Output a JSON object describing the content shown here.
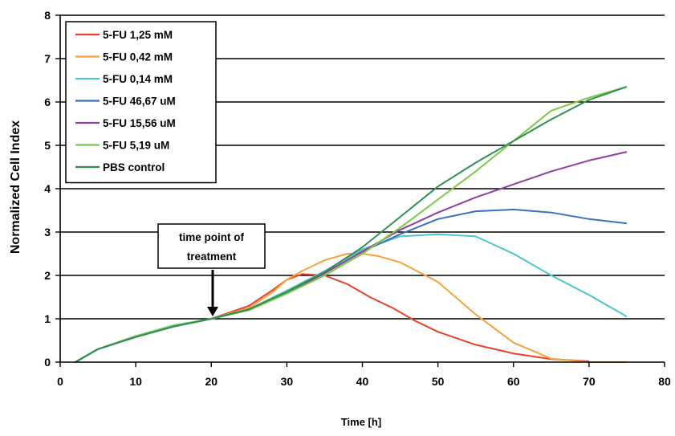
{
  "chart_data": {
    "type": "line",
    "title": "",
    "xlabel": "Time [h]",
    "ylabel": "Normalized Cell Index",
    "xlim": [
      0,
      80
    ],
    "ylim": [
      0,
      8
    ],
    "x_ticks": [
      "0",
      "10",
      "20",
      "30",
      "40",
      "50",
      "60",
      "70",
      "80"
    ],
    "y_ticks": [
      "0",
      "1",
      "2",
      "3",
      "4",
      "5",
      "6",
      "7",
      "8"
    ],
    "grid": "horizontal",
    "legend_position": "top-left",
    "annotation": {
      "lines": [
        "time point of",
        "treatment"
      ],
      "x": 20.5,
      "y": 1.0
    },
    "series": [
      {
        "name": "5-FU 1,25 mM",
        "color": "#e8412c",
        "points": [
          [
            2,
            0
          ],
          [
            5,
            0.3
          ],
          [
            10,
            0.6
          ],
          [
            15,
            0.83
          ],
          [
            20,
            1.0
          ],
          [
            25,
            1.3
          ],
          [
            28,
            1.65
          ],
          [
            30,
            1.9
          ],
          [
            32,
            2.03
          ],
          [
            35,
            2.0
          ],
          [
            38,
            1.8
          ],
          [
            41,
            1.5
          ],
          [
            44,
            1.25
          ],
          [
            47,
            0.95
          ],
          [
            50,
            0.7
          ],
          [
            55,
            0.4
          ],
          [
            60,
            0.2
          ],
          [
            65,
            0.07
          ],
          [
            70,
            0.02
          ]
        ]
      },
      {
        "name": "5-FU 0,42 mM",
        "color": "#f7a23b",
        "points": [
          [
            2,
            0
          ],
          [
            5,
            0.3
          ],
          [
            10,
            0.6
          ],
          [
            15,
            0.83
          ],
          [
            20,
            1.0
          ],
          [
            25,
            1.25
          ],
          [
            28,
            1.6
          ],
          [
            30,
            1.9
          ],
          [
            32,
            2.1
          ],
          [
            35,
            2.35
          ],
          [
            38,
            2.5
          ],
          [
            40,
            2.5
          ],
          [
            42,
            2.45
          ],
          [
            45,
            2.3
          ],
          [
            50,
            1.85
          ],
          [
            55,
            1.1
          ],
          [
            60,
            0.45
          ],
          [
            65,
            0.08
          ],
          [
            70,
            0.0
          ],
          [
            75,
            0.0
          ]
        ]
      },
      {
        "name": "5-FU 0,14 mM",
        "color": "#4fc6c7",
        "points": [
          [
            2,
            0
          ],
          [
            5,
            0.3
          ],
          [
            10,
            0.6
          ],
          [
            15,
            0.85
          ],
          [
            20,
            1.0
          ],
          [
            25,
            1.22
          ],
          [
            30,
            1.65
          ],
          [
            35,
            2.1
          ],
          [
            40,
            2.6
          ],
          [
            45,
            2.9
          ],
          [
            50,
            2.95
          ],
          [
            55,
            2.9
          ],
          [
            60,
            2.5
          ],
          [
            65,
            2.0
          ],
          [
            70,
            1.55
          ],
          [
            75,
            1.05
          ]
        ]
      },
      {
        "name": "5-FU 46,67 uM",
        "color": "#3a6fbf",
        "points": [
          [
            2,
            0
          ],
          [
            5,
            0.3
          ],
          [
            10,
            0.58
          ],
          [
            15,
            0.82
          ],
          [
            20,
            1.0
          ],
          [
            25,
            1.2
          ],
          [
            30,
            1.6
          ],
          [
            35,
            2.05
          ],
          [
            40,
            2.55
          ],
          [
            45,
            2.95
          ],
          [
            50,
            3.3
          ],
          [
            55,
            3.48
          ],
          [
            60,
            3.52
          ],
          [
            65,
            3.45
          ],
          [
            70,
            3.3
          ],
          [
            75,
            3.2
          ]
        ]
      },
      {
        "name": "5-FU 15,56 uM",
        "color": "#8e3fa3",
        "points": [
          [
            2,
            0
          ],
          [
            5,
            0.3
          ],
          [
            10,
            0.58
          ],
          [
            15,
            0.82
          ],
          [
            20,
            1.0
          ],
          [
            25,
            1.2
          ],
          [
            30,
            1.6
          ],
          [
            35,
            2.05
          ],
          [
            40,
            2.55
          ],
          [
            45,
            3.05
          ],
          [
            50,
            3.45
          ],
          [
            55,
            3.8
          ],
          [
            60,
            4.1
          ],
          [
            65,
            4.4
          ],
          [
            70,
            4.65
          ],
          [
            75,
            4.85
          ]
        ]
      },
      {
        "name": "5-FU 5,19 uM",
        "color": "#7ac943",
        "points": [
          [
            2,
            0
          ],
          [
            5,
            0.3
          ],
          [
            10,
            0.6
          ],
          [
            15,
            0.84
          ],
          [
            20,
            1.0
          ],
          [
            25,
            1.2
          ],
          [
            30,
            1.58
          ],
          [
            35,
            2.0
          ],
          [
            40,
            2.5
          ],
          [
            45,
            3.1
          ],
          [
            50,
            3.75
          ],
          [
            55,
            4.4
          ],
          [
            60,
            5.1
          ],
          [
            65,
            5.8
          ],
          [
            70,
            6.1
          ],
          [
            75,
            6.35
          ]
        ]
      },
      {
        "name": "PBS control",
        "color": "#2f8f52",
        "points": [
          [
            2,
            0
          ],
          [
            5,
            0.3
          ],
          [
            10,
            0.58
          ],
          [
            15,
            0.82
          ],
          [
            20,
            1.0
          ],
          [
            25,
            1.22
          ],
          [
            30,
            1.62
          ],
          [
            35,
            2.08
          ],
          [
            40,
            2.65
          ],
          [
            45,
            3.35
          ],
          [
            50,
            4.05
          ],
          [
            55,
            4.6
          ],
          [
            60,
            5.1
          ],
          [
            65,
            5.6
          ],
          [
            70,
            6.05
          ],
          [
            75,
            6.35
          ]
        ]
      }
    ]
  }
}
